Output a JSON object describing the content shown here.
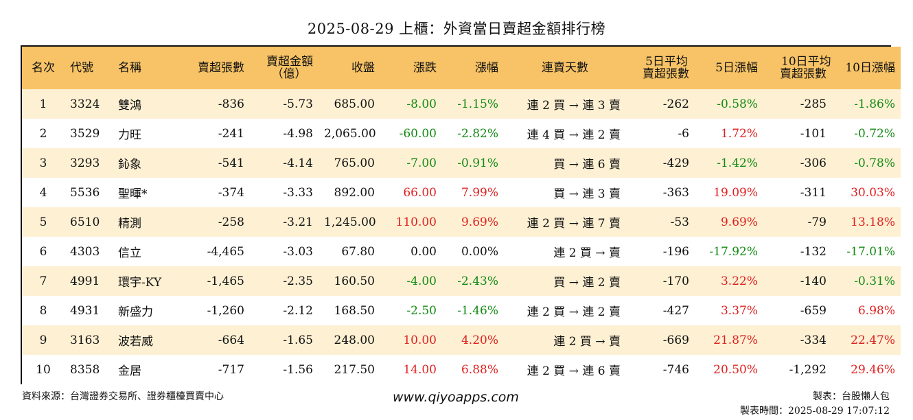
{
  "title": "2025-08-29 上櫃：外資當日賣超金額排行榜",
  "headers": {
    "rank": "名次",
    "code": "代號",
    "name": "名稱",
    "sell_shares": "賣超張數",
    "sell_amount_line1": "賣超金額",
    "sell_amount_line2": "（億）",
    "close": "收盤",
    "change": "漲跌",
    "change_pct": "漲幅",
    "streak": "連賣天數",
    "avg5_line1": "5日平均",
    "avg5_line2": "賣超張數",
    "pct5": "5日漲幅",
    "avg10_line1": "10日平均",
    "avg10_line2": "賣超張數",
    "pct10": "10日漲幅"
  },
  "colors": {
    "header_bg": "#f7c366",
    "odd_row_bg": "#fdf0d3",
    "even_row_bg": "#ffffff",
    "up": "#e02020",
    "down": "#128a12"
  },
  "rows": [
    {
      "rank": "1",
      "code": "3324",
      "name": "雙鴻",
      "sell_shares": "-836",
      "sell_amount": "-5.73",
      "close": "685.00",
      "change": "-8.00",
      "change_pct": "-1.15%",
      "streak": "連 2 買 → 連 3 賣",
      "avg5": "-262",
      "pct5": "-0.58%",
      "avg10": "-285",
      "pct10": "-1.86%"
    },
    {
      "rank": "2",
      "code": "3529",
      "name": "力旺",
      "sell_shares": "-241",
      "sell_amount": "-4.98",
      "close": "2,065.00",
      "change": "-60.00",
      "change_pct": "-2.82%",
      "streak": "連 4 買 → 連 2 賣",
      "avg5": "-6",
      "pct5": "1.72%",
      "avg10": "-101",
      "pct10": "-0.72%"
    },
    {
      "rank": "3",
      "code": "3293",
      "name": "鈊象",
      "sell_shares": "-541",
      "sell_amount": "-4.14",
      "close": "765.00",
      "change": "-7.00",
      "change_pct": "-0.91%",
      "streak": "買 → 連 6 賣",
      "avg5": "-429",
      "pct5": "-1.42%",
      "avg10": "-306",
      "pct10": "-0.78%"
    },
    {
      "rank": "4",
      "code": "5536",
      "name": "聖暉*",
      "sell_shares": "-374",
      "sell_amount": "-3.33",
      "close": "892.00",
      "change": "66.00",
      "change_pct": "7.99%",
      "streak": "買 → 連 3 賣",
      "avg5": "-363",
      "pct5": "19.09%",
      "avg10": "-311",
      "pct10": "30.03%"
    },
    {
      "rank": "5",
      "code": "6510",
      "name": "精測",
      "sell_shares": "-258",
      "sell_amount": "-3.21",
      "close": "1,245.00",
      "change": "110.00",
      "change_pct": "9.69%",
      "streak": "連 2 買 → 連 7 賣",
      "avg5": "-53",
      "pct5": "9.69%",
      "avg10": "-79",
      "pct10": "13.18%"
    },
    {
      "rank": "6",
      "code": "4303",
      "name": "信立",
      "sell_shares": "-4,465",
      "sell_amount": "-3.03",
      "close": "67.80",
      "change": "0.00",
      "change_pct": "0.00%",
      "streak": "連 2 買 → 賣",
      "avg5": "-196",
      "pct5": "-17.92%",
      "avg10": "-132",
      "pct10": "-17.01%"
    },
    {
      "rank": "7",
      "code": "4991",
      "name": "環宇-KY",
      "sell_shares": "-1,465",
      "sell_amount": "-2.35",
      "close": "160.50",
      "change": "-4.00",
      "change_pct": "-2.43%",
      "streak": "買 → 連 2 賣",
      "avg5": "-170",
      "pct5": "3.22%",
      "avg10": "-140",
      "pct10": "-0.31%"
    },
    {
      "rank": "8",
      "code": "4931",
      "name": "新盛力",
      "sell_shares": "-1,260",
      "sell_amount": "-2.12",
      "close": "168.50",
      "change": "-2.50",
      "change_pct": "-1.46%",
      "streak": "連 2 買 → 連 2 賣",
      "avg5": "-427",
      "pct5": "3.37%",
      "avg10": "-659",
      "pct10": "6.98%"
    },
    {
      "rank": "9",
      "code": "3163",
      "name": "波若威",
      "sell_shares": "-664",
      "sell_amount": "-1.65",
      "close": "248.00",
      "change": "10.00",
      "change_pct": "4.20%",
      "streak": "連 2 買 → 賣",
      "avg5": "-669",
      "pct5": "21.87%",
      "avg10": "-334",
      "pct10": "22.47%"
    },
    {
      "rank": "10",
      "code": "8358",
      "name": "金居",
      "sell_shares": "-717",
      "sell_amount": "-1.56",
      "close": "217.50",
      "change": "14.00",
      "change_pct": "6.88%",
      "streak": "連 2 買 → 連 6 賣",
      "avg5": "-746",
      "pct5": "20.50%",
      "avg10": "-1,292",
      "pct10": "29.46%"
    }
  ],
  "footer": {
    "source": "資料來源：台灣證券交易所、證券櫃檯買賣中心",
    "site": "www.qiyoapps.com",
    "author": "製表：台股懶人包",
    "made_time": "製表時間：2025-08-29 17:07:12"
  }
}
